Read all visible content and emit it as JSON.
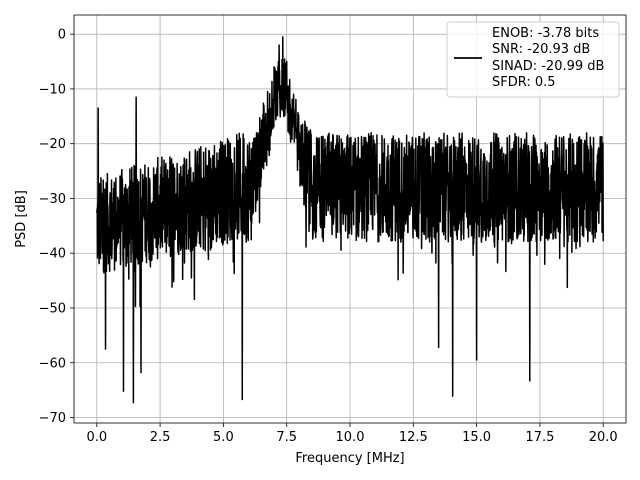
{
  "chart_data": {
    "type": "line",
    "title": "",
    "xlabel": "Frequency [MHz]",
    "ylabel": "PSD [dB]",
    "xlim": [
      -0.9,
      20.9
    ],
    "ylim": [
      -71,
      3.5
    ],
    "xticks": [
      0.0,
      2.5,
      5.0,
      7.5,
      10.0,
      12.5,
      15.0,
      17.5,
      20.0
    ],
    "xtick_labels": [
      "0.0",
      "2.5",
      "5.0",
      "7.5",
      "10.0",
      "12.5",
      "15.0",
      "17.5",
      "20.0"
    ],
    "yticks": [
      0,
      -10,
      -20,
      -30,
      -40,
      -50,
      -60,
      -70
    ],
    "ytick_labels": [
      "0",
      "−10",
      "−20",
      "−30",
      "−40",
      "−50",
      "−60",
      "−70"
    ],
    "grid": true,
    "legend_position": "top-right",
    "series": [
      {
        "name": "ENOB: -3.78 bits",
        "label_lines": [
          "ENOB: -3.78 bits",
          "SNR: -20.93 dB",
          "SINAD: -20.99 dB",
          "SFDR: 0.5"
        ],
        "color": "#000000",
        "x_range": [
          0.0,
          20.0
        ],
        "noise_band_upper_db": -18,
        "noise_band_lower_db": -38,
        "peaks": [
          {
            "x": 0.05,
            "y": -13.5
          },
          {
            "x": 0.35,
            "y": -23
          },
          {
            "x": 1.55,
            "y": -11.5
          },
          {
            "x": 6.75,
            "y": -10.5
          },
          {
            "x": 7.0,
            "y": -6
          },
          {
            "x": 7.2,
            "y": -2
          },
          {
            "x": 7.35,
            "y": -0.5
          },
          {
            "x": 7.5,
            "y": -5
          }
        ],
        "dips": [
          {
            "x": 0.35,
            "y": -57.5
          },
          {
            "x": 1.05,
            "y": -65.2
          },
          {
            "x": 1.45,
            "y": -67.3
          },
          {
            "x": 1.75,
            "y": -61.8
          },
          {
            "x": 5.75,
            "y": -66.7
          },
          {
            "x": 13.5,
            "y": -57.2
          },
          {
            "x": 14.05,
            "y": -66.1
          },
          {
            "x": 15.0,
            "y": -59.5
          },
          {
            "x": 17.1,
            "y": -63.3
          }
        ]
      }
    ]
  }
}
